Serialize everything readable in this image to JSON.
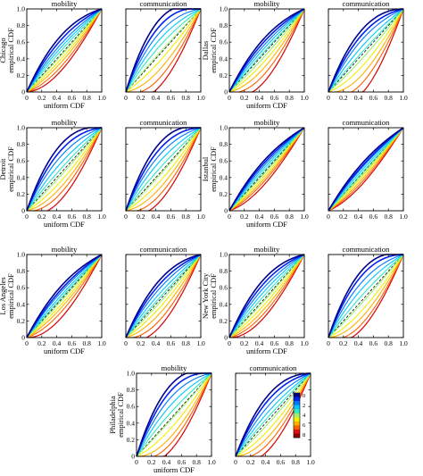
{
  "figure": {
    "xlabel": "uniform CDF",
    "ylabel_suffix": "empirical CDF",
    "xticks": [
      "0",
      "0.2",
      "0.4",
      "0.6",
      "0.8",
      "1.0"
    ],
    "yticks": [
      "0",
      "0.2",
      "0.4",
      "0.6",
      "0.8",
      "1.0"
    ],
    "panel_titles": [
      "mobility",
      "communication"
    ]
  },
  "colorbar": {
    "ticks": [
      "0",
      "2",
      "4",
      "6",
      "8"
    ],
    "colors": [
      "#00008c",
      "#0022ee",
      "#0077ff",
      "#00c8ff",
      "#30e8c0",
      "#a0f070",
      "#f0f000",
      "#ffb000",
      "#ff6000",
      "#e01010",
      "#900000"
    ]
  },
  "chart_data": [
    {
      "type": "line",
      "city": "Chicago",
      "panels": [
        {
          "title": "mobility",
          "curvature": [
            0.22,
            0.17,
            0.12,
            0.08,
            0.04,
            -0.02,
            -0.06,
            -0.1,
            -0.15,
            -0.2
          ]
        },
        {
          "title": "communication",
          "curvature": [
            0.42,
            0.34,
            0.26,
            0.18,
            0.1,
            0.02,
            -0.08,
            -0.18,
            -0.28,
            -0.38
          ]
        }
      ]
    },
    {
      "type": "line",
      "city": "Dallas",
      "panels": [
        {
          "title": "mobility",
          "curvature": [
            0.18,
            0.14,
            0.1,
            0.06,
            0.02,
            -0.04,
            -0.1,
            -0.17,
            -0.25,
            -0.34
          ]
        },
        {
          "title": "communication",
          "curvature": [
            0.3,
            0.24,
            0.18,
            0.1,
            0.03,
            -0.05,
            -0.14,
            -0.24,
            -0.34,
            -0.46
          ]
        }
      ]
    },
    {
      "type": "line",
      "city": "Detroit",
      "panels": [
        {
          "title": "mobility",
          "curvature": [
            0.34,
            0.27,
            0.2,
            0.12,
            0.05,
            -0.03,
            -0.1,
            -0.17,
            -0.24,
            -0.32
          ]
        },
        {
          "title": "communication",
          "curvature": [
            0.36,
            0.29,
            0.22,
            0.14,
            0.06,
            -0.02,
            -0.1,
            -0.18,
            -0.26,
            -0.34
          ]
        }
      ]
    },
    {
      "type": "line",
      "city": "Istanbul",
      "panels": [
        {
          "title": "mobility",
          "curvature": [
            0.14,
            0.11,
            0.08,
            0.05,
            0.02,
            -0.02,
            -0.05,
            -0.08,
            -0.11,
            -0.15
          ]
        },
        {
          "title": "communication",
          "curvature": [
            0.12,
            0.09,
            0.07,
            0.04,
            0.01,
            -0.02,
            -0.04,
            -0.07,
            -0.1,
            -0.13
          ]
        }
      ]
    },
    {
      "type": "line",
      "city": "Los Angeles",
      "panels": [
        {
          "title": "mobility",
          "curvature": [
            0.16,
            0.12,
            0.09,
            0.05,
            0.02,
            -0.02,
            -0.06,
            -0.1,
            -0.15,
            -0.22
          ]
        },
        {
          "title": "communication",
          "curvature": [
            0.24,
            0.19,
            0.14,
            0.08,
            0.03,
            -0.03,
            -0.09,
            -0.16,
            -0.24,
            -0.32
          ]
        }
      ]
    },
    {
      "type": "line",
      "city": "New York City",
      "panels": [
        {
          "title": "mobility",
          "curvature": [
            0.24,
            0.19,
            0.14,
            0.09,
            0.04,
            -0.02,
            -0.07,
            -0.12,
            -0.17,
            -0.22
          ]
        },
        {
          "title": "communication",
          "curvature": [
            0.36,
            0.3,
            0.22,
            0.14,
            0.06,
            -0.03,
            -0.12,
            -0.2,
            -0.28,
            -0.34
          ]
        }
      ]
    },
    {
      "type": "line",
      "city": "Philadelphia",
      "panels": [
        {
          "title": "mobility",
          "curvature": [
            0.4,
            0.33,
            0.25,
            0.16,
            0.07,
            -0.02,
            -0.12,
            -0.22,
            -0.3,
            -0.38
          ]
        },
        {
          "title": "communication",
          "curvature": [
            0.3,
            0.24,
            0.17,
            0.1,
            0.04,
            -0.04,
            -0.12,
            -0.2,
            -0.28,
            -0.36
          ]
        }
      ]
    }
  ],
  "curve_model": "y = x + c * 4 * x * (1 - x) * (1 - 0.35 * (x - 0.5))",
  "x_range": [
    0,
    1
  ],
  "y_range": [
    0,
    1
  ],
  "reference_line": "dashed diagonal y = x"
}
